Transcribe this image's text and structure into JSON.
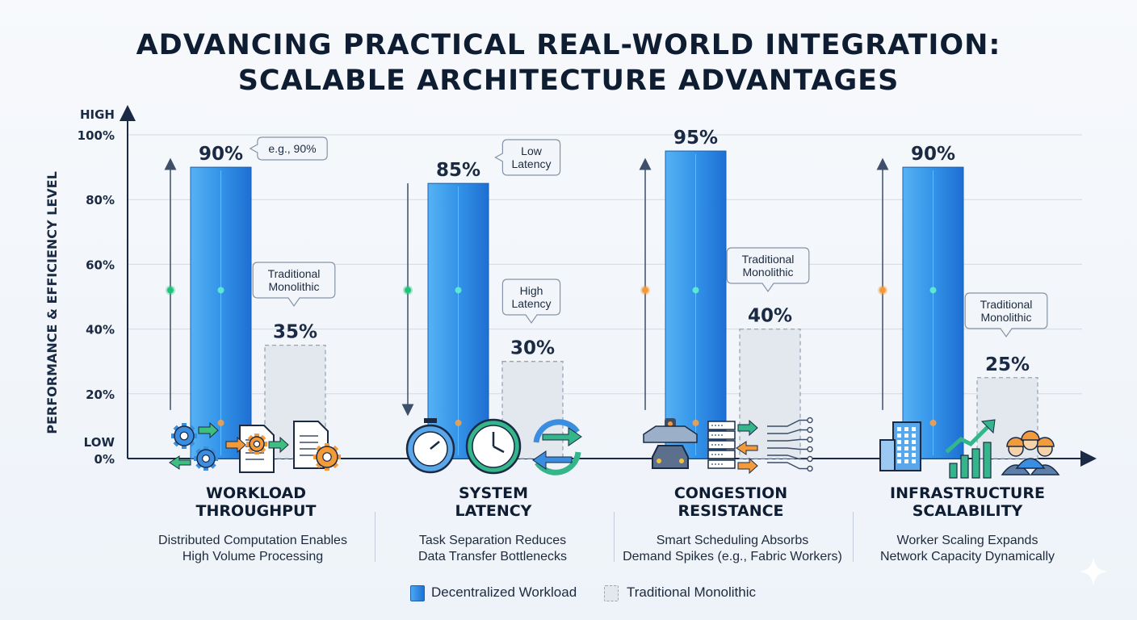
{
  "title_line1": "ADVANCING PRACTICAL REAL-WORLD INTEGRATION:",
  "title_line2": "SCALABLE ARCHITECTURE ADVANTAGES",
  "colors": {
    "decentralized": "#2f86e0",
    "traditional": "#e3e7ee",
    "green": "#22c27a",
    "orange": "#f39a3a",
    "axis": "#1a2a44"
  },
  "chart_data": {
    "type": "bar",
    "title": "ADVANCING PRACTICAL REAL-WORLD INTEGRATION: SCALABLE ARCHITECTURE ADVANTAGES",
    "ylabel": "PERFORMANCE & EFFICIENCY LEVEL",
    "ylim": [
      0,
      100
    ],
    "yticks": [
      "0%",
      "20%",
      "40%",
      "60%",
      "80%",
      "100%"
    ],
    "y_high_label": "HIGH",
    "y_low_label": "LOW",
    "categories": [
      "WORKLOAD THROUGHPUT",
      "SYSTEM LATENCY",
      "CONGESTION RESISTANCE",
      "INFRASTRUCTURE SCALABILITY"
    ],
    "category_title_lines": [
      [
        "WORKLOAD",
        "THROUGHPUT"
      ],
      [
        "SYSTEM",
        "LATENCY"
      ],
      [
        "CONGESTION",
        "RESISTANCE"
      ],
      [
        "INFRASTRUCTURE",
        "SCALABILITY"
      ]
    ],
    "descriptions": [
      [
        "Distributed Computation Enables",
        "High Volume Processing"
      ],
      [
        "Task Separation Reduces",
        "Data Transfer Bottlenecks"
      ],
      [
        "Smart Scheduling Absorbs",
        "Demand Spikes (e.g., Fabric Workers)"
      ],
      [
        "Worker Scaling Expands",
        "Network Capacity Dynamically"
      ]
    ],
    "series": [
      {
        "name": "Decentralized Workload",
        "values": [
          90,
          85,
          95,
          90
        ],
        "labels": [
          "90%",
          "85%",
          "95%",
          "90%"
        ]
      },
      {
        "name": "Traditional Monolithic",
        "values": [
          35,
          30,
          40,
          25
        ],
        "labels": [
          "35%",
          "30%",
          "40%",
          "25%"
        ]
      }
    ],
    "annotations": [
      {
        "category": 0,
        "target": "decentralized",
        "lines": [
          "e.g., 90%"
        ]
      },
      {
        "category": 0,
        "target": "traditional",
        "lines": [
          "Traditional",
          "Monolithic"
        ]
      },
      {
        "category": 1,
        "target": "decentralized",
        "lines": [
          "Low",
          "Latency"
        ]
      },
      {
        "category": 1,
        "target": "traditional",
        "lines": [
          "High",
          "Latency"
        ]
      },
      {
        "category": 2,
        "target": "traditional",
        "lines": [
          "Traditional",
          "Monolithic"
        ]
      },
      {
        "category": 3,
        "target": "traditional",
        "lines": [
          "Traditional",
          "Monolithic"
        ]
      }
    ],
    "legend": [
      "Decentralized Workload",
      "Traditional Monolithic"
    ],
    "legend_position": "bottom",
    "grid": true
  },
  "icons": [
    [
      "gears-icon",
      "document-gear-icon",
      "document-gear-icon"
    ],
    [
      "stopwatch-icon",
      "clock-icon",
      "refresh-arrows-icon"
    ],
    [
      "traffic-car-icon",
      "server-rack-icon",
      "circuit-icon"
    ],
    [
      "building-icon",
      "growth-chart-icon",
      "workers-icon"
    ]
  ]
}
